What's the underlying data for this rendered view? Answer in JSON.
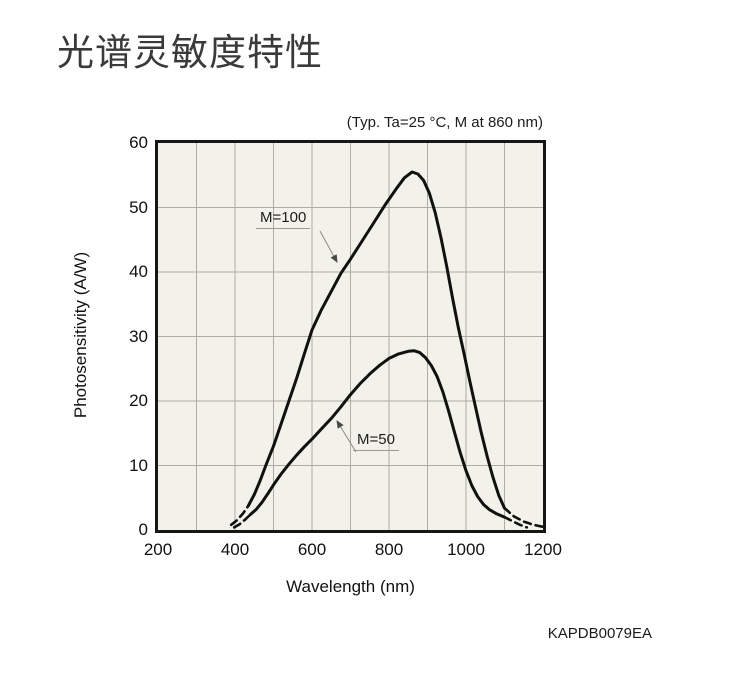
{
  "page": {
    "title": "光谱灵敏度特性",
    "footer_code": "KAPDB0079EA"
  },
  "chart": {
    "condition": "(Typ. Ta=25 °C, M at 860 nm)",
    "x_axis": {
      "label": "Wavelength (nm)",
      "ticks": [
        "200",
        "400",
        "600",
        "800",
        "1000",
        "1200"
      ]
    },
    "y_axis": {
      "label": "Photosensitivity (A/W)",
      "ticks": [
        "0",
        "10",
        "20",
        "30",
        "40",
        "50",
        "60"
      ]
    }
  },
  "chart_data": {
    "type": "line",
    "title": "光谱灵敏度特性",
    "subtitle": "(Typ. Ta=25 °C, M at 860 nm)",
    "xlabel": "Wavelength (nm)",
    "ylabel": "Photosensitivity (A/W)",
    "xlim": [
      200,
      1200
    ],
    "ylim": [
      0,
      60
    ],
    "x_major_ticks": [
      200,
      400,
      600,
      800,
      1000,
      1200
    ],
    "y_major_ticks": [
      0,
      10,
      20,
      30,
      40,
      50,
      60
    ],
    "x_gridline_step": 100,
    "y_gridline_step": 10,
    "grid": true,
    "legend_position": "inline-annotations",
    "plot_background": "#f2f1ea",
    "gridline_color": "#aeada4",
    "curve_color": "#111111",
    "series": [
      {
        "name": "M=100",
        "peak": {
          "x": 860,
          "y": 55.5
        },
        "segments": [
          {
            "style": "dashed",
            "points": [
              [
                390,
                0.8
              ],
              [
                405,
                1.5
              ],
              [
                420,
                2.5
              ],
              [
                435,
                3.8
              ]
            ]
          },
          {
            "style": "solid",
            "points": [
              [
                435,
                3.8
              ],
              [
                450,
                5.5
              ],
              [
                465,
                7.6
              ],
              [
                480,
                10
              ],
              [
                500,
                13
              ],
              [
                520,
                16.5
              ],
              [
                540,
                20
              ],
              [
                560,
                23.5
              ],
              [
                580,
                27.3
              ],
              [
                600,
                31
              ],
              [
                625,
                34.2
              ],
              [
                650,
                37
              ],
              [
                675,
                39.8
              ],
              [
                700,
                42
              ],
              [
                730,
                44.8
              ],
              [
                760,
                47.6
              ],
              [
                790,
                50.4
              ],
              [
                820,
                53
              ],
              [
                840,
                54.6
              ],
              [
                860,
                55.5
              ],
              [
                875,
                55.2
              ],
              [
                890,
                54.2
              ],
              [
                905,
                52.2
              ],
              [
                920,
                49.2
              ],
              [
                935,
                45.3
              ],
              [
                950,
                40.8
              ],
              [
                965,
                36
              ],
              [
                980,
                31.4
              ],
              [
                995,
                27.3
              ],
              [
                1010,
                23
              ],
              [
                1025,
                19
              ],
              [
                1040,
                15
              ],
              [
                1055,
                11.4
              ],
              [
                1070,
                8.2
              ],
              [
                1085,
                5.4
              ],
              [
                1100,
                3.4
              ]
            ]
          },
          {
            "style": "dashed",
            "points": [
              [
                1100,
                3.4
              ],
              [
                1125,
                2.1
              ],
              [
                1150,
                1.3
              ],
              [
                1175,
                0.8
              ],
              [
                1200,
                0.5
              ]
            ]
          }
        ]
      },
      {
        "name": "M=50",
        "peak": {
          "x": 865,
          "y": 27.8
        },
        "segments": [
          {
            "style": "dashed",
            "points": [
              [
                398,
                0.4
              ],
              [
                412,
                0.9
              ],
              [
                426,
                1.6
              ],
              [
                440,
                2.4
              ]
            ]
          },
          {
            "style": "solid",
            "points": [
              [
                440,
                2.4
              ],
              [
                455,
                3.2
              ],
              [
                470,
                4.3
              ],
              [
                485,
                5.6
              ],
              [
                500,
                7
              ],
              [
                520,
                8.7
              ],
              [
                540,
                10.2
              ],
              [
                560,
                11.6
              ],
              [
                580,
                12.9
              ],
              [
                600,
                14.1
              ],
              [
                625,
                15.7
              ],
              [
                650,
                17.3
              ],
              [
                675,
                19.1
              ],
              [
                700,
                21
              ],
              [
                725,
                22.7
              ],
              [
                750,
                24.2
              ],
              [
                775,
                25.5
              ],
              [
                800,
                26.6
              ],
              [
                825,
                27.3
              ],
              [
                850,
                27.7
              ],
              [
                865,
                27.8
              ],
              [
                880,
                27.5
              ],
              [
                895,
                26.7
              ],
              [
                910,
                25.5
              ],
              [
                925,
                23.8
              ],
              [
                940,
                21.4
              ],
              [
                955,
                18.4
              ],
              [
                970,
                15.2
              ],
              [
                985,
                12
              ],
              [
                1000,
                9.2
              ],
              [
                1015,
                6.9
              ],
              [
                1030,
                5.2
              ],
              [
                1045,
                4
              ],
              [
                1060,
                3.2
              ],
              [
                1080,
                2.5
              ],
              [
                1100,
                2
              ]
            ]
          },
          {
            "style": "dashed",
            "points": [
              [
                1100,
                2
              ],
              [
                1120,
                1.4
              ],
              [
                1140,
                0.8
              ],
              [
                1158,
                0.4
              ]
            ]
          }
        ]
      }
    ]
  }
}
